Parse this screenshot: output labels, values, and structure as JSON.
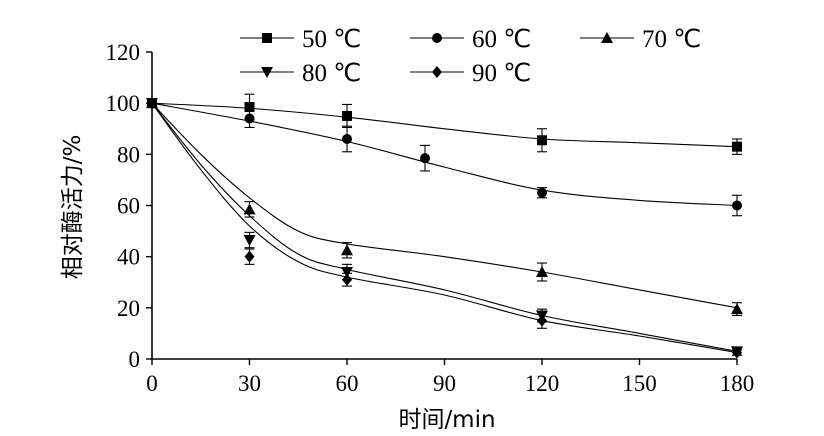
{
  "chart_data": {
    "type": "line",
    "title": "",
    "xlabel": "时间/min",
    "ylabel": "相对酶活力/%",
    "xlim": [
      0,
      180
    ],
    "ylim": [
      0,
      120
    ],
    "x_ticks": [
      "0",
      "30",
      "60",
      "90",
      "120",
      "150",
      "180"
    ],
    "y_ticks": [
      "0",
      "20",
      "40",
      "60",
      "80",
      "100",
      "120"
    ],
    "grid": false,
    "legend_position": "top",
    "series": [
      {
        "name": "50 ℃",
        "marker": "square",
        "points": [
          {
            "x": 0,
            "y": 100,
            "err": 0
          },
          {
            "x": 30,
            "y": 98.5,
            "err": 5
          },
          {
            "x": 60,
            "y": 95,
            "err": 4.5
          },
          {
            "x": 120,
            "y": 85.5,
            "err": 4.5
          },
          {
            "x": 180,
            "y": 83,
            "err": 3
          }
        ],
        "curve": [
          [
            0,
            100
          ],
          [
            30,
            98
          ],
          [
            60,
            94.5
          ],
          [
            90,
            90
          ],
          [
            120,
            86
          ],
          [
            150,
            84.5
          ],
          [
            180,
            83
          ]
        ]
      },
      {
        "name": "60 ℃",
        "marker": "circle",
        "points": [
          {
            "x": 0,
            "y": 100,
            "err": 0
          },
          {
            "x": 30,
            "y": 94,
            "err": 3.5
          },
          {
            "x": 60,
            "y": 86,
            "err": 5
          },
          {
            "x": 84,
            "y": 78.5,
            "err": 5
          },
          {
            "x": 120,
            "y": 65,
            "err": 2
          },
          {
            "x": 180,
            "y": 60,
            "err": 4
          }
        ],
        "curve": [
          [
            0,
            100
          ],
          [
            30,
            93
          ],
          [
            60,
            85
          ],
          [
            90,
            75
          ],
          [
            120,
            66
          ],
          [
            150,
            62
          ],
          [
            180,
            60
          ]
        ]
      },
      {
        "name": "70 ℃",
        "marker": "triangle-up",
        "points": [
          {
            "x": 0,
            "y": 100,
            "err": 0
          },
          {
            "x": 30,
            "y": 58.5,
            "err": 3
          },
          {
            "x": 60,
            "y": 42.5,
            "err": 3
          },
          {
            "x": 120,
            "y": 34,
            "err": 3.5
          },
          {
            "x": 180,
            "y": 19.5,
            "err": 2.5
          }
        ],
        "curve": [
          [
            0,
            100
          ],
          [
            15,
            80
          ],
          [
            30,
            63
          ],
          [
            45,
            50
          ],
          [
            60,
            45
          ],
          [
            90,
            40
          ],
          [
            120,
            34
          ],
          [
            150,
            27
          ],
          [
            180,
            20
          ]
        ]
      },
      {
        "name": "80 ℃",
        "marker": "triangle-down",
        "points": [
          {
            "x": 0,
            "y": 100,
            "err": 0
          },
          {
            "x": 30,
            "y": 46.5,
            "err": 3
          },
          {
            "x": 60,
            "y": 34,
            "err": 3
          },
          {
            "x": 120,
            "y": 17,
            "err": 2.5
          },
          {
            "x": 180,
            "y": 3,
            "err": 1.5
          }
        ],
        "curve": [
          [
            0,
            100
          ],
          [
            15,
            76
          ],
          [
            30,
            56
          ],
          [
            45,
            41
          ],
          [
            60,
            35
          ],
          [
            90,
            27
          ],
          [
            120,
            17
          ],
          [
            150,
            10
          ],
          [
            180,
            3
          ]
        ]
      },
      {
        "name": "90 ℃",
        "marker": "diamond",
        "points": [
          {
            "x": 0,
            "y": 100,
            "err": 0
          },
          {
            "x": 30,
            "y": 40,
            "err": 3
          },
          {
            "x": 60,
            "y": 31,
            "err": 2.5
          },
          {
            "x": 120,
            "y": 15,
            "err": 3
          },
          {
            "x": 180,
            "y": 2.5,
            "err": 1
          }
        ],
        "curve": [
          [
            0,
            100
          ],
          [
            15,
            74
          ],
          [
            30,
            52
          ],
          [
            45,
            38
          ],
          [
            60,
            32
          ],
          [
            90,
            25
          ],
          [
            120,
            15
          ],
          [
            150,
            9
          ],
          [
            180,
            2.5
          ]
        ]
      }
    ]
  }
}
